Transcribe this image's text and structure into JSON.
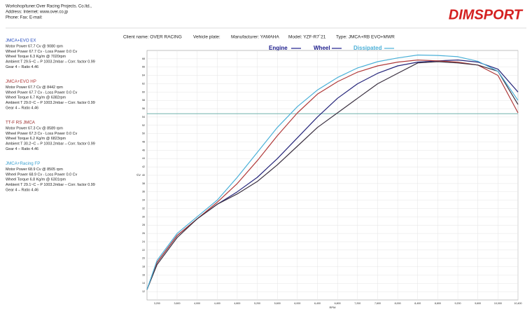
{
  "header": {
    "lines": [
      "Workshop/tuner:Over Racing Projects. Co.ltd.,",
      "Address:  Internet: www.over.co.jp",
      "Phone:  Fax:  E-mail:"
    ],
    "logo": "DIMSPORT"
  },
  "vehicle": [
    "Client name: OVER RACING",
    "Vehicle plate:",
    "Manufacturer: YAMAHA",
    "Model: YZF-R7`21",
    "Type: JMCA+RB EVO+MWR"
  ],
  "chart_data": {
    "type": "line",
    "legend_items": [
      {
        "label": "Engine",
        "color": "#1c1c8c"
      },
      {
        "label": "Wheel",
        "color": "#1c1c8c"
      },
      {
        "label": "Dissipated",
        "color": "#4ab0d8"
      }
    ],
    "x_label": "RPM",
    "y_label": "Cv",
    "x": [
      3000,
      3200,
      3600,
      4000,
      4400,
      4800,
      5200,
      5600,
      6000,
      6400,
      6800,
      7200,
      7600,
      8000,
      8400,
      8800,
      9200,
      9600,
      10000,
      10400
    ],
    "xlim": [
      3000,
      10400
    ],
    "xticks": [
      {
        "value": 3200,
        "label": "3,200"
      },
      {
        "value": 3600,
        "label": "3,600"
      },
      {
        "value": 4000,
        "label": "4,000"
      },
      {
        "value": 4400,
        "label": "4,400"
      },
      {
        "value": 4800,
        "label": "4,800"
      },
      {
        "value": 5200,
        "label": "5,200"
      },
      {
        "value": 5600,
        "label": "5,600"
      },
      {
        "value": 6000,
        "label": "6,000"
      },
      {
        "value": 6400,
        "label": "6,400"
      },
      {
        "value": 6800,
        "label": "6,800"
      },
      {
        "value": 7200,
        "label": "7,200"
      },
      {
        "value": 7600,
        "label": "7,600"
      },
      {
        "value": 8000,
        "label": "8,000"
      },
      {
        "value": 8400,
        "label": "8,400"
      },
      {
        "value": 8800,
        "label": "8,800"
      },
      {
        "value": 9200,
        "label": "9,200"
      },
      {
        "value": 9600,
        "label": "9,600"
      },
      {
        "value": 10000,
        "label": "10,000"
      },
      {
        "value": 10400,
        "label": "10,400"
      }
    ],
    "ylim": [
      10,
      70
    ],
    "yticks": [
      12,
      14,
      16,
      18,
      20,
      22,
      24,
      26,
      28,
      30,
      32,
      34,
      36,
      38,
      40,
      42,
      44,
      46,
      48,
      50,
      52,
      54,
      56,
      58,
      60,
      62,
      64,
      66,
      68
    ],
    "grid": true,
    "reference_line": {
      "value": 54.8,
      "color": "#5aa8a0"
    },
    "series": [
      {
        "name": "JMCA+EVO EX",
        "color": "#25257a",
        "label_color": "#2a4fc0",
        "details": [
          "Motor Power 67.7 Cv  @ 9080 rpm",
          "Wheel Power 67.7 Cv  - Loss Power 0.0 Cv",
          "Wheel Torque 6.3 Kg/m  @ 7020rpm",
          "Ambient T 29.5~C – P 1003.2mbar – Corr. factor 0.99",
          "Gear 4 – Ratio 4.46"
        ],
        "values": [
          12.5,
          19,
          25.5,
          29.5,
          33,
          36,
          39.5,
          44,
          49,
          54,
          58.5,
          62,
          64.5,
          66.3,
          67.2,
          67.5,
          67.7,
          67.2,
          65.5,
          60
        ]
      },
      {
        "name": "JMCA+EVO HP",
        "color": "#b03a3a",
        "label_color": "#b03a3a",
        "details": [
          "Motor Power 67.7 Cv  @ 8442 rpm",
          "Wheel Power 67.7 Cv  - Loss Power 0.0 Cv",
          "Wheel Torque 6.7 Kg/m  @ 6382rpm",
          "Ambient T 29.0~C – P 1003.2mbar – Corr. factor 0.99",
          "Gear 4 – Ratio 4.46"
        ],
        "values": [
          12.5,
          19,
          25.5,
          29.5,
          33.5,
          38,
          43.5,
          49.5,
          55,
          59.5,
          62.5,
          64.8,
          66.3,
          67.2,
          67.7,
          67.5,
          67.2,
          66.5,
          64,
          55
        ]
      },
      {
        "name": "TT-F RS JMCA",
        "color": "#3a3040",
        "label_color": "#9a2a2a",
        "details": [
          "Motor Power 67.3 Cv  @ 8589 rpm",
          "Wheel Power 67.3 Cv  - Loss Power 0.0 Cv",
          "Wheel Torque 6.2 Kg/m  @ 6823rpm",
          "Ambient T 30.2~C – P 1003.2mbar – Corr. factor 0.99",
          "Gear 4 – Ratio 4.46"
        ],
        "values": [
          12.5,
          18.5,
          25,
          29.5,
          33,
          35.5,
          38.5,
          42.5,
          47,
          51.5,
          55,
          58.5,
          62,
          64.5,
          67,
          67.3,
          67,
          66.5,
          65,
          57
        ]
      },
      {
        "name": "JMCA+Racing FP",
        "color": "#4ab0d8",
        "label_color": "#3aa0d0",
        "details": [
          "Motor Power 68.9 Cv  @ 8505 rpm",
          "Wheel Power 68.9 Cv  - Loss Power 0.0 Cv",
          "Wheel Torque 6.8 Kg/m  @ 6301rpm",
          "Ambient T 29.1~C – P 1003.2mbar – Corr. factor 0.99",
          "Gear 4 – Ratio 4.46"
        ],
        "values": [
          12.5,
          19.5,
          26,
          30,
          34,
          39.5,
          45.5,
          51.5,
          56.5,
          60.5,
          63.5,
          65.8,
          67.3,
          68.2,
          68.9,
          68.8,
          68.5,
          67.4,
          65,
          58
        ]
      }
    ]
  }
}
